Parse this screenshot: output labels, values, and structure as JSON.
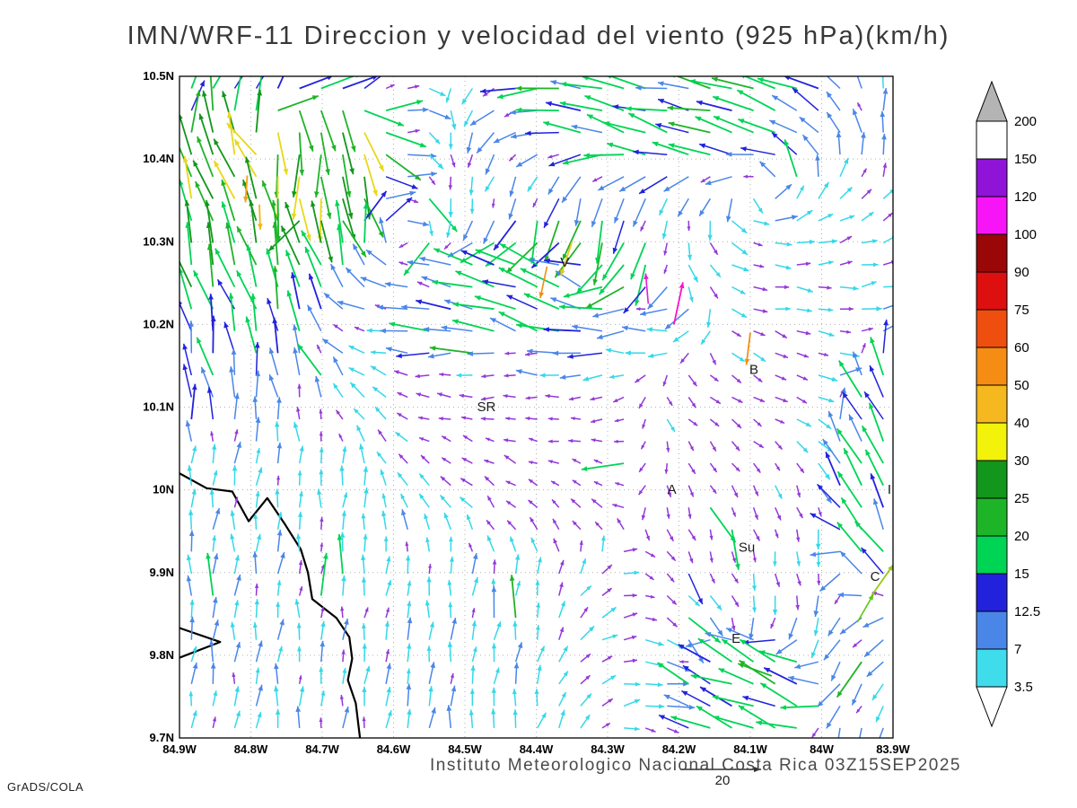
{
  "title": "IMN/WRF-11 Direccion y velocidad del viento (925 hPa)(km/h)",
  "footer": {
    "institute_line": "Instituto Meteorologico Nacional Costa Rica 03Z15SEP2025",
    "reference_vector_label": "20",
    "credit": "GrADS/COLA"
  },
  "chart_data": {
    "type": "vector_field",
    "model": "IMN/WRF-11",
    "variable": "Direccion y velocidad del viento",
    "level": "925 hPa",
    "units": "km/h",
    "valid_time": "03Z15SEP2025",
    "region": "Costa Rica",
    "lon_range": [
      -84.9,
      -83.9
    ],
    "lat_range": [
      9.7,
      10.5
    ],
    "lat_ticks": [
      {
        "v": 10.5,
        "label": "10.5N"
      },
      {
        "v": 10.4,
        "label": "10.4N"
      },
      {
        "v": 10.3,
        "label": "10.3N"
      },
      {
        "v": 10.2,
        "label": "10.2N"
      },
      {
        "v": 10.1,
        "label": "10.1N"
      },
      {
        "v": 10.0,
        "label": "10N"
      },
      {
        "v": 9.9,
        "label": "9.9N"
      },
      {
        "v": 9.8,
        "label": "9.8N"
      },
      {
        "v": 9.7,
        "label": "9.7N"
      }
    ],
    "lon_ticks": [
      {
        "v": -84.9,
        "label": "84.9W"
      },
      {
        "v": -84.8,
        "label": "84.8W"
      },
      {
        "v": -84.7,
        "label": "84.7W"
      },
      {
        "v": -84.6,
        "label": "84.6W"
      },
      {
        "v": -84.5,
        "label": "84.5W"
      },
      {
        "v": -84.4,
        "label": "84.4W"
      },
      {
        "v": -84.3,
        "label": "84.3W"
      },
      {
        "v": -84.2,
        "label": "84.2W"
      },
      {
        "v": -84.1,
        "label": "84.1W"
      },
      {
        "v": -84.0,
        "label": "84W"
      },
      {
        "v": -83.9,
        "label": "83.9W"
      }
    ],
    "colorbar": {
      "levels": [
        3.5,
        7,
        12.5,
        15,
        20,
        25,
        30,
        40,
        50,
        60,
        75,
        90,
        100,
        120,
        150,
        200
      ],
      "segment_colors_bottom_to_top": [
        "#3fdcec",
        "#4a86e8",
        "#2222dd",
        "#00d455",
        "#1eb428",
        "#12961c",
        "#f2f20a",
        "#f5b81e",
        "#f58c14",
        "#ee4e0e",
        "#dd0f0f",
        "#990707",
        "#f714f7",
        "#8f14d8",
        "#ffffff"
      ],
      "below_min_color": "#ffffff",
      "above_max_color": "#b4b4b4"
    },
    "stations": [
      {
        "label": "V",
        "lon": -84.36,
        "lat": 10.27
      },
      {
        "label": "B",
        "lon": -84.095,
        "lat": 10.14
      },
      {
        "label": "SR",
        "lon": -84.47,
        "lat": 10.095
      },
      {
        "label": "A",
        "lon": -84.21,
        "lat": 9.995
      },
      {
        "label": "I",
        "lon": -83.905,
        "lat": 9.995
      },
      {
        "label": "Su",
        "lon": -84.105,
        "lat": 9.925
      },
      {
        "label": "C",
        "lon": -83.925,
        "lat": 9.89
      },
      {
        "label": "E",
        "lon": -84.12,
        "lat": 9.815
      }
    ],
    "coastlines": [
      [
        [
          -84.9,
          10.02
        ],
        [
          -84.862,
          10.002
        ],
        [
          -84.826,
          9.998
        ],
        [
          -84.803,
          9.962
        ],
        [
          -84.777,
          9.99
        ],
        [
          -84.752,
          9.958
        ],
        [
          -84.73,
          9.928
        ],
        [
          -84.72,
          9.9
        ],
        [
          -84.714,
          9.868
        ],
        [
          -84.68,
          9.845
        ],
        [
          -84.662,
          9.822
        ],
        [
          -84.658,
          9.796
        ],
        [
          -84.664,
          9.77
        ],
        [
          -84.653,
          9.742
        ],
        [
          -84.647,
          9.7
        ]
      ],
      [
        [
          -84.9,
          9.833
        ],
        [
          -84.843,
          9.816
        ],
        [
          -84.9,
          9.797
        ]
      ]
    ],
    "field": {
      "nx": 33,
      "ny": 30,
      "seed": 7,
      "arrow_palette": [
        {
          "max": 4.2,
          "color": "#9438d8"
        },
        {
          "max": 7,
          "color": "#35d8e8"
        },
        {
          "max": 12.5,
          "color": "#4a86e8"
        },
        {
          "max": 15,
          "color": "#2222dd"
        },
        {
          "max": 20,
          "color": "#00d455"
        },
        {
          "max": 25,
          "color": "#1eb428"
        },
        {
          "max": 30,
          "color": "#12961c"
        },
        {
          "max": 40,
          "color": "#e8d816"
        },
        {
          "max": 50,
          "color": "#f5b81e"
        },
        {
          "max": 60,
          "color": "#f58c14"
        },
        {
          "max": 75,
          "color": "#ee4e0e"
        },
        {
          "max": 90,
          "color": "#dd0f0f"
        },
        {
          "max": 100,
          "color": "#990707"
        },
        {
          "max": 120,
          "color": "#f714f7"
        },
        {
          "max": 150,
          "color": "#8f14d8"
        },
        {
          "max": 999,
          "color": "#ffffff"
        }
      ],
      "zones": [
        {
          "cx": 0.07,
          "wx": 0.15,
          "cy": 0.28,
          "wy": 0.22,
          "u": -0.25,
          "v": 1,
          "s": 27
        },
        {
          "cx": 0.03,
          "wx": 0.1,
          "cy": 0.52,
          "wy": 0.2,
          "u": -0.3,
          "v": 0.9,
          "s": 20
        },
        {
          "cx": 0.12,
          "wx": 0.22,
          "cy": 0.8,
          "wy": 0.3,
          "u": 0.05,
          "v": 1,
          "s": 6.5
        },
        {
          "cx": 0.35,
          "wx": 0.18,
          "cy": 0.92,
          "wy": 0.15,
          "u": 0.1,
          "v": 1,
          "s": 6.5
        },
        {
          "cx": 0.68,
          "wx": 0.2,
          "cy": 0.04,
          "wy": 0.1,
          "u": -1,
          "v": 0.25,
          "s": 17
        },
        {
          "cx": 0.55,
          "wx": 0.25,
          "cy": 0.45,
          "wy": 0.22,
          "u": 0,
          "v": 0,
          "s": 2.2
        },
        {
          "cx": 0.5,
          "wx": 0.22,
          "cy": 0.38,
          "wy": 0.08,
          "u": -1,
          "v": 0,
          "s": 7
        },
        {
          "cx": 0.99,
          "wx": 0.07,
          "cy": 0.6,
          "wy": 0.18,
          "u": -0.5,
          "v": 0.85,
          "s": 15
        },
        {
          "cx": 0.8,
          "wx": 0.1,
          "cy": 0.93,
          "wy": 0.09,
          "u": -0.85,
          "v": 0.4,
          "s": 16
        },
        {
          "cx": 0.2,
          "wx": 0.08,
          "cy": 0.13,
          "wy": 0.09,
          "u": 0.05,
          "v": -0.9,
          "s": 30
        },
        {
          "cx": 0.55,
          "wx": 0.1,
          "cy": 0.28,
          "wy": 0.08,
          "u": -0.15,
          "v": -0.9,
          "s": 22
        },
        {
          "cx": 0.47,
          "wx": 0.12,
          "cy": 0.33,
          "wy": 0.07,
          "u": -0.9,
          "v": 0.35,
          "s": 15
        }
      ]
    },
    "feature_arrows": [
      {
        "lon": -84.207,
        "lat": 10.2,
        "dir": 78,
        "len": 48,
        "color": "#f714c8",
        "width": 1.8
      },
      {
        "lon": -84.243,
        "lat": 10.225,
        "dir": 95,
        "len": 34,
        "color": "#e020d0",
        "width": 1.6
      },
      {
        "lon": -84.1,
        "lat": 10.19,
        "dir": 263,
        "len": 36,
        "color": "#f58c14",
        "width": 1.8
      },
      {
        "lon": -84.805,
        "lat": 10.38,
        "dir": 266,
        "len": 30,
        "color": "#f5a014",
        "width": 1.8
      },
      {
        "lon": -84.788,
        "lat": 10.345,
        "dir": 272,
        "len": 28,
        "color": "#f2b414",
        "width": 1.8
      },
      {
        "lon": -84.35,
        "lat": 10.3,
        "dir": 252,
        "len": 40,
        "color": "#e8c814",
        "width": 1.8
      },
      {
        "lon": -84.385,
        "lat": 10.27,
        "dir": 258,
        "len": 36,
        "color": "#f58c14",
        "width": 1.6
      },
      {
        "lon": -83.93,
        "lat": 9.872,
        "dir": 55,
        "len": 42,
        "color": "#9ac814",
        "width": 1.8
      },
      {
        "lon": -83.95,
        "lat": 9.84,
        "dir": 60,
        "len": 36,
        "color": "#5fc814",
        "width": 1.6
      },
      {
        "lon": -84.07,
        "lat": 9.775,
        "dir": 160,
        "len": 40,
        "color": "#1eb428",
        "width": 1.8
      }
    ]
  }
}
